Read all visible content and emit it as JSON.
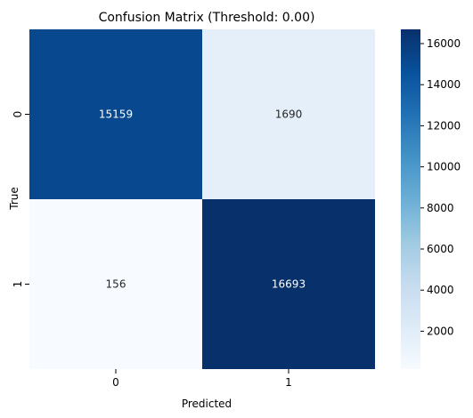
{
  "chart_data": {
    "type": "heatmap",
    "title": "Confusion Matrix (Threshold: 0.00)",
    "xlabel": "Predicted",
    "ylabel": "True",
    "x_categories": [
      "0",
      "1"
    ],
    "y_categories": [
      "0",
      "1"
    ],
    "values": [
      [
        15159,
        1690
      ],
      [
        156,
        16693
      ]
    ],
    "annotations": [
      [
        "15159",
        "1690"
      ],
      [
        "156",
        "16693"
      ]
    ],
    "colormap": "Blues",
    "color_range": [
      156,
      16693
    ],
    "colorbar_ticks": [
      2000,
      4000,
      6000,
      8000,
      10000,
      12000,
      14000,
      16000
    ],
    "colorbar_tick_labels": [
      "2000",
      "4000",
      "6000",
      "8000",
      "10000",
      "12000",
      "14000",
      "16000"
    ],
    "grid": false,
    "legend": "colorbar-right"
  }
}
